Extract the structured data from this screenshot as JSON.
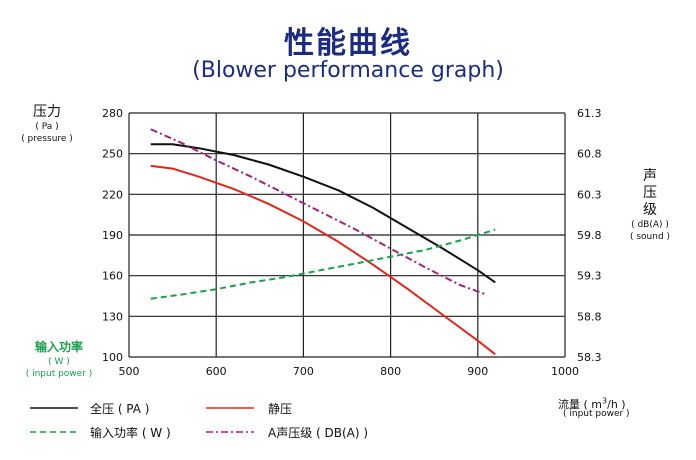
{
  "title": "性能曲线",
  "subtitle": "(Blower performance graph)",
  "y_left": {
    "label": "压力",
    "unit": "( Pa )",
    "sub": "( pressure )"
  },
  "y_right": {
    "label_1": "声",
    "label_2": "压",
    "label_3": "级",
    "unit": "( dB(A) )",
    "sub": "( sound )"
  },
  "y_power": {
    "label": "输入功率",
    "unit": "( W )",
    "sub": "( input power )"
  },
  "x_axis": {
    "label": "流量",
    "unit_open": "( m",
    "unit_sup": "3",
    "unit_close": "/h )",
    "sub": "( input power )"
  },
  "colors": {
    "total": "#111111",
    "static": "#e3261c",
    "power": "#19a04a",
    "sound": "#a3237a",
    "grid": "#222222",
    "title": "#1c2c80"
  },
  "chart_data": {
    "type": "line",
    "title": "性能曲线",
    "subtitle": "(Blower performance graph)",
    "xlabel": "流量 ( m3/h )",
    "ylabel_left": "压力 ( Pa )",
    "ylabel_right": "声压级 ( dB(A) )",
    "xlim": [
      500,
      1000
    ],
    "ylim_left": [
      100,
      280
    ],
    "ylim_right": [
      58.3,
      61.3
    ],
    "x_ticks": [
      "500",
      "600",
      "700",
      "800",
      "900",
      "1000"
    ],
    "y_left_ticks": [
      "100",
      "130",
      "160",
      "190",
      "220",
      "250",
      "280"
    ],
    "y_right_ticks": [
      "58.3",
      "58.8",
      "59.3",
      "59.8",
      "60.3",
      "60.8",
      "61.3"
    ],
    "grid": true,
    "series": [
      {
        "name": "全压 ( PA )",
        "axis": "left",
        "style": "solid",
        "points": [
          [
            525,
            257
          ],
          [
            550,
            257
          ],
          [
            580,
            254
          ],
          [
            620,
            249
          ],
          [
            660,
            242
          ],
          [
            700,
            233
          ],
          [
            740,
            223
          ],
          [
            780,
            210
          ],
          [
            820,
            195
          ],
          [
            860,
            180
          ],
          [
            900,
            164
          ],
          [
            920,
            155
          ]
        ]
      },
      {
        "name": "静压",
        "axis": "left",
        "style": "solid",
        "points": [
          [
            525,
            241
          ],
          [
            550,
            239
          ],
          [
            580,
            233
          ],
          [
            620,
            224
          ],
          [
            660,
            213
          ],
          [
            700,
            200
          ],
          [
            740,
            185
          ],
          [
            780,
            168
          ],
          [
            820,
            150
          ],
          [
            860,
            131
          ],
          [
            900,
            112
          ],
          [
            920,
            102
          ]
        ]
      },
      {
        "name": "输入功率 ( W )",
        "axis": "left",
        "style": "dashed",
        "points": [
          [
            525,
            143
          ],
          [
            560,
            146
          ],
          [
            600,
            150
          ],
          [
            640,
            155
          ],
          [
            680,
            159
          ],
          [
            720,
            164
          ],
          [
            760,
            169
          ],
          [
            800,
            174
          ],
          [
            840,
            179
          ],
          [
            880,
            186
          ],
          [
            920,
            194
          ]
        ]
      },
      {
        "name": "A声压级 ( DB(A) )",
        "axis": "left",
        "style": "dashdot",
        "points": [
          [
            525,
            268
          ],
          [
            560,
            258
          ],
          [
            600,
            245
          ],
          [
            640,
            233
          ],
          [
            680,
            220
          ],
          [
            720,
            207
          ],
          [
            760,
            194
          ],
          [
            800,
            180
          ],
          [
            840,
            166
          ],
          [
            880,
            153
          ],
          [
            910,
            146
          ]
        ]
      }
    ]
  }
}
